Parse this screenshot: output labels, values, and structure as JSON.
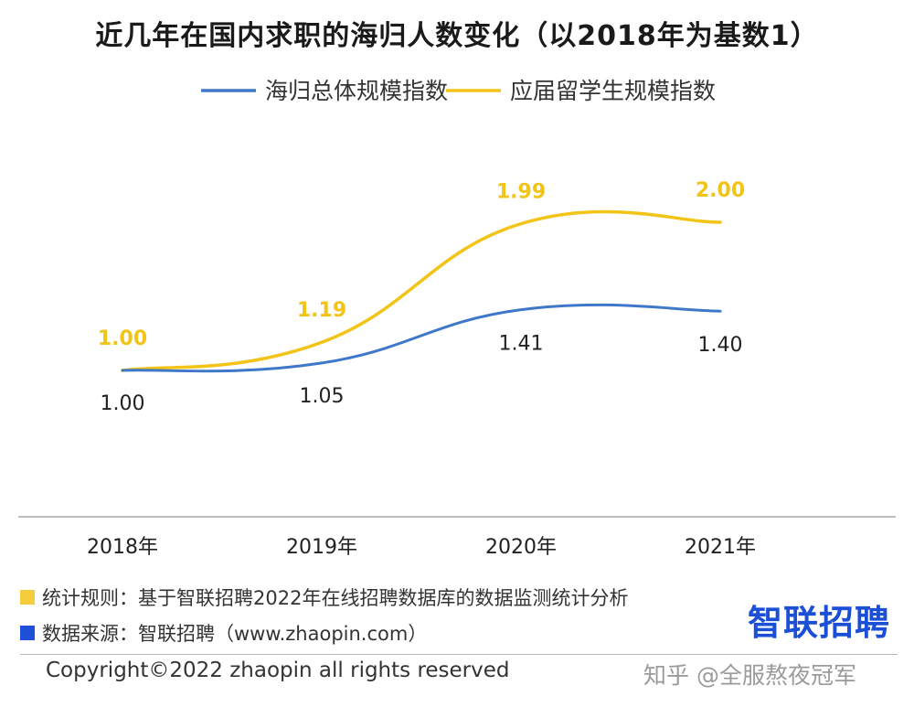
{
  "chart_data": {
    "type": "line",
    "title": "近几年在国内求职的海归人数变化（以2018年为基数1）",
    "categories": [
      "2018年",
      "2019年",
      "2020年",
      "2021年"
    ],
    "series": [
      {
        "name": "海归总体规模指数",
        "color": "#3f78c8",
        "values": [
          1.0,
          1.05,
          1.41,
          1.4
        ],
        "labels": [
          "1.00",
          "1.05",
          "1.41",
          "1.40"
        ]
      },
      {
        "name": "应届留学生规模指数",
        "color": "#f2c418",
        "values": [
          1.0,
          1.19,
          1.99,
          2.0
        ],
        "labels": [
          "1.00",
          "1.19",
          "1.99",
          "2.00"
        ]
      }
    ],
    "legend_position": "top-center",
    "grid": false,
    "smooth": true
  },
  "notes": [
    {
      "text": "统计规则：基于智联招聘2022年在线招聘数据库的数据监测统计分析",
      "color": "#f5cc3a"
    },
    {
      "text": "数据来源：智联招聘（www.zhaopin.com）",
      "color": "#1f4fd8"
    }
  ],
  "logo": "智联招聘",
  "copyright": "Copyright©2022 zhaopin all rights reserved",
  "watermark": "知乎 @全服熬夜冠军"
}
